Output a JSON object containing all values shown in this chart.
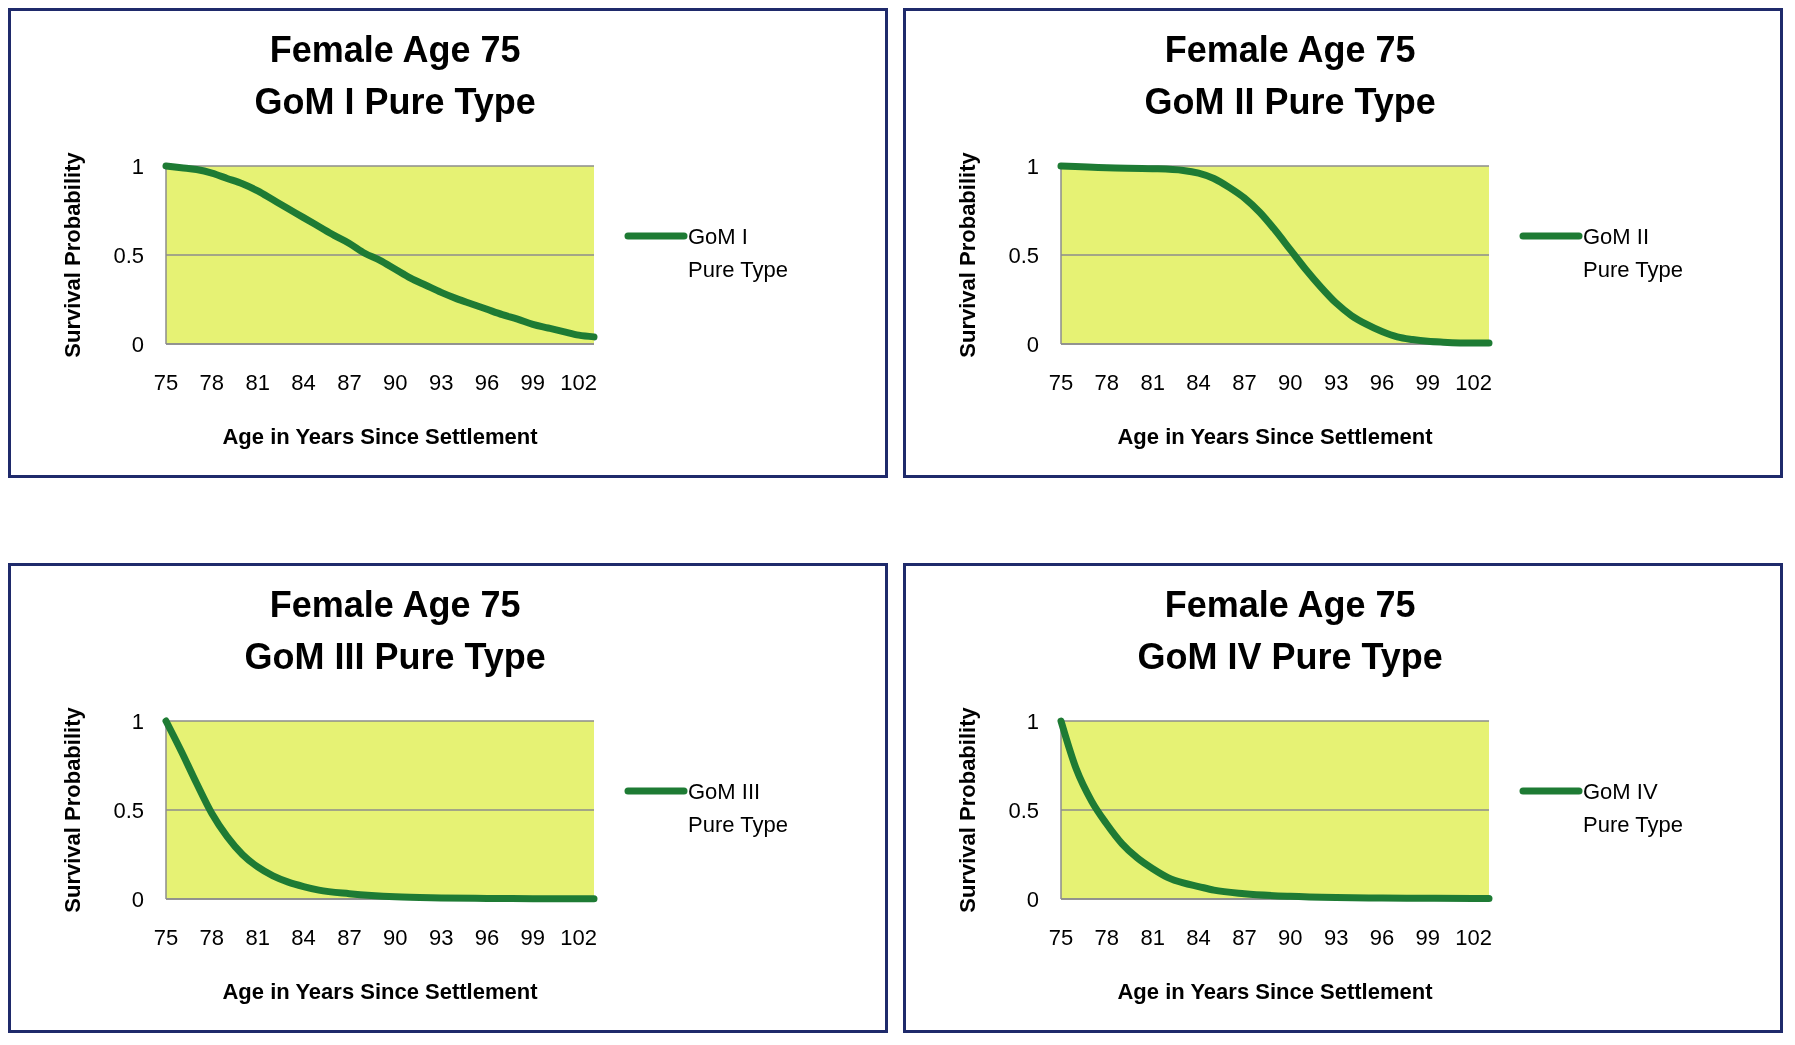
{
  "chart_data": [
    {
      "type": "line",
      "title": "Female Age 75\nGoM I Pure Type",
      "xlabel": "Age in Years Since Settlement",
      "ylabel": "Survival Probability",
      "xlim": [
        75,
        103
      ],
      "xticks": [
        75,
        78,
        81,
        84,
        87,
        90,
        93,
        96,
        99,
        102
      ],
      "ylim": [
        0,
        1
      ],
      "yticks": [
        0,
        0.5,
        1
      ],
      "grid": "y",
      "legend": "right",
      "line_style": "solid",
      "series": [
        {
          "name": "GoM I Pure Type",
          "color": "#1e7b34",
          "x": [
            75,
            76,
            77,
            78,
            79,
            80,
            81,
            82,
            83,
            84,
            85,
            86,
            87,
            88,
            89,
            90,
            91,
            92,
            93,
            94,
            95,
            96,
            97,
            98,
            99,
            100,
            101,
            102,
            103
          ],
          "values": [
            1,
            0.99,
            0.98,
            0.96,
            0.93,
            0.9,
            0.86,
            0.81,
            0.76,
            0.71,
            0.66,
            0.61,
            0.565,
            0.51,
            0.47,
            0.42,
            0.37,
            0.33,
            0.29,
            0.255,
            0.225,
            0.195,
            0.165,
            0.14,
            0.11,
            0.09,
            0.07,
            0.05,
            0.04
          ]
        }
      ]
    },
    {
      "type": "line",
      "title": "Female Age 75\nGoM II Pure Type",
      "xlabel": "Age in Years Since Settlement",
      "ylabel": "Survival Probability",
      "xlim": [
        75,
        103
      ],
      "xticks": [
        75,
        78,
        81,
        84,
        87,
        90,
        93,
        96,
        99,
        102
      ],
      "ylim": [
        0,
        1
      ],
      "yticks": [
        0,
        0.5,
        1
      ],
      "grid": "y",
      "legend": "right",
      "line_style": "solid",
      "series": [
        {
          "name": "GoM II Pure Type",
          "color": "#1e7b34",
          "x": [
            75,
            78,
            81,
            83,
            84,
            85,
            86,
            87,
            88,
            89,
            90,
            91,
            92,
            93,
            94,
            95,
            96,
            97,
            98,
            99,
            100,
            102,
            103
          ],
          "values": [
            1,
            0.99,
            0.985,
            0.975,
            0.96,
            0.93,
            0.88,
            0.82,
            0.74,
            0.64,
            0.53,
            0.42,
            0.32,
            0.23,
            0.16,
            0.11,
            0.07,
            0.04,
            0.025,
            0.015,
            0.01,
            0.005,
            0.005
          ]
        }
      ]
    },
    {
      "type": "line",
      "title": "Female Age 75\nGoM III Pure Type",
      "xlabel": "Age in Years Since Settlement",
      "ylabel": "Survival Probability",
      "xlim": [
        75,
        103
      ],
      "xticks": [
        75,
        78,
        81,
        84,
        87,
        90,
        93,
        96,
        99,
        102
      ],
      "ylim": [
        0,
        1
      ],
      "yticks": [
        0,
        0.5,
        1
      ],
      "grid": "y",
      "legend": "right",
      "line_style": "solid",
      "series": [
        {
          "name": "GoM III Pure Type",
          "color": "#1e7b34",
          "x": [
            75,
            76,
            77,
            78,
            79,
            80,
            81,
            82,
            83,
            84,
            85,
            87,
            90,
            93,
            96,
            99,
            102,
            103
          ],
          "values": [
            1,
            0.83,
            0.65,
            0.48,
            0.35,
            0.25,
            0.18,
            0.13,
            0.095,
            0.07,
            0.05,
            0.03,
            0.012,
            0.006,
            0.003,
            0.002,
            0.001,
            0.001
          ]
        }
      ]
    },
    {
      "type": "line",
      "title": "Female Age 75\nGoM IV Pure Type",
      "xlabel": "Age in Years Since Settlement",
      "ylabel": "Survival Probability",
      "xlim": [
        75,
        103
      ],
      "xticks": [
        75,
        78,
        81,
        84,
        87,
        90,
        93,
        96,
        99,
        102
      ],
      "ylim": [
        0,
        1
      ],
      "yticks": [
        0,
        0.5,
        1
      ],
      "grid": "y",
      "legend": "right",
      "line_style": "solid",
      "series": [
        {
          "name": "GoM IV Pure Type",
          "color": "#1e7b34",
          "x": [
            75,
            76,
            77,
            78,
            79,
            80,
            81,
            82,
            83,
            84,
            85,
            87,
            90,
            93,
            96,
            99,
            102,
            103
          ],
          "values": [
            1,
            0.73,
            0.55,
            0.42,
            0.31,
            0.23,
            0.17,
            0.12,
            0.09,
            0.07,
            0.05,
            0.03,
            0.015,
            0.008,
            0.005,
            0.004,
            0.003,
            0.003
          ]
        }
      ]
    }
  ]
}
